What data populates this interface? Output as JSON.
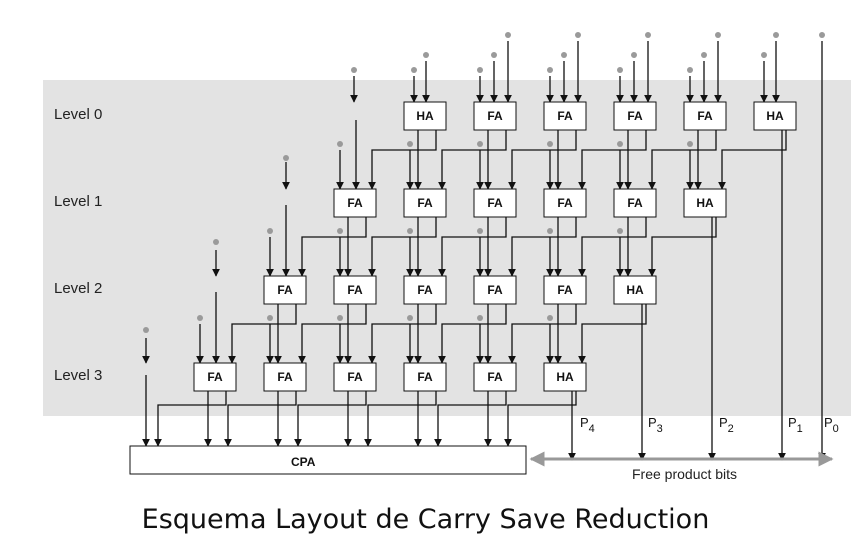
{
  "levels": [
    "Level 0",
    "Level 1",
    "Level 2",
    "Level 3"
  ],
  "rows": [
    [
      "HA",
      "FA",
      "FA",
      "FA",
      "FA",
      "HA"
    ],
    [
      "FA",
      "FA",
      "FA",
      "FA",
      "FA",
      "HA"
    ],
    [
      "FA",
      "FA",
      "FA",
      "FA",
      "FA",
      "HA"
    ],
    [
      "FA",
      "FA",
      "FA",
      "FA",
      "FA",
      "HA"
    ]
  ],
  "cpa_label": "CPA",
  "product_bits": [
    {
      "letter": "P",
      "sub": "4"
    },
    {
      "letter": "P",
      "sub": "3"
    },
    {
      "letter": "P",
      "sub": "2"
    },
    {
      "letter": "P",
      "sub": "1"
    },
    {
      "letter": "P",
      "sub": "0"
    }
  ],
  "free_bits_label": "Free product bits",
  "caption": "Esquema Layout de Carry Save Reduction",
  "colors": {
    "band": "#e3e3e3",
    "dot": "#9a9a9a",
    "line": "#111111",
    "free_arrow": "#999999"
  }
}
